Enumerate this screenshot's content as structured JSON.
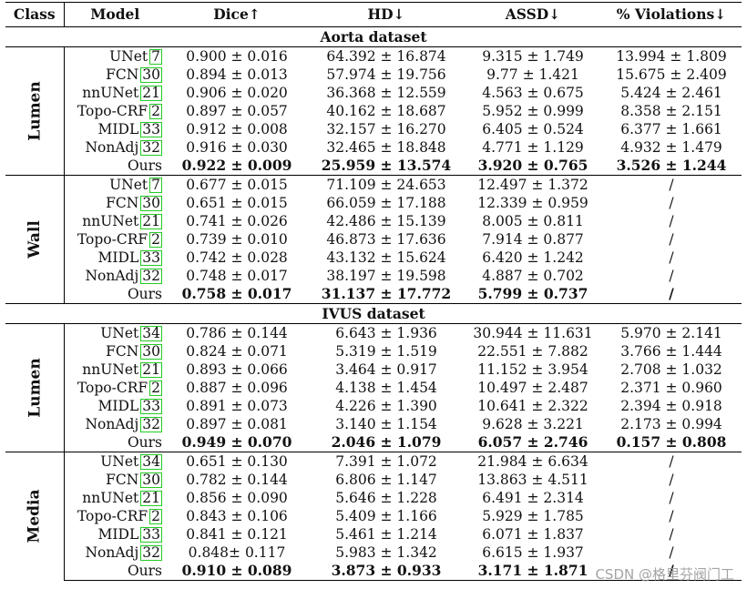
{
  "headers": [
    "Class",
    "Model",
    "Dice↑",
    "HD↓",
    "ASSD↓",
    "% Violations↓"
  ],
  "datasets": [
    {
      "title": "Aorta dataset",
      "groups": [
        {
          "label": "Lumen",
          "rows": [
            {
              "model": "UNet",
              "ref": "7",
              "dice": "0.900 ± 0.016",
              "hd": "64.392 ± 16.874",
              "assd": "9.315 ± 1.749",
              "viol": "13.994 ± 1.809"
            },
            {
              "model": "FCN",
              "ref": "30",
              "dice": "0.894 ± 0.013",
              "hd": "57.974 ± 19.756",
              "assd": "9.77 ± 1.421",
              "viol": "15.675 ± 2.409"
            },
            {
              "model": "nnUNet",
              "ref": "21",
              "dice": "0.906 ± 0.020",
              "hd": "36.368 ± 12.559",
              "assd": "4.563 ± 0.675",
              "viol": "5.424 ± 2.461"
            },
            {
              "model": "Topo-CRF",
              "ref": "2",
              "dice": "0.897 ± 0.057",
              "hd": "40.162 ± 18.687",
              "assd": "5.952 ± 0.999",
              "viol": "8.358 ± 2.151"
            },
            {
              "model": "MIDL",
              "ref": "33",
              "dice": "0.912 ± 0.008",
              "hd": "32.157 ± 16.270",
              "assd": "6.405 ± 0.524",
              "viol": "6.377 ± 1.661"
            },
            {
              "model": "NonAdj",
              "ref": "32",
              "dice": "0.916 ± 0.030",
              "hd": "32.465 ± 18.848",
              "assd": "4.771 ± 1.129",
              "viol": "4.932 ± 1.479"
            },
            {
              "model": "Ours",
              "ref": "",
              "dice": "0.922 ± 0.009",
              "hd": "25.959 ± 13.574",
              "assd": "3.920 ± 0.765",
              "viol": "3.526 ± 1.244",
              "best": true
            }
          ]
        },
        {
          "label": "Wall",
          "rows": [
            {
              "model": "UNet",
              "ref": "7",
              "dice": "0.677 ± 0.015",
              "hd": "71.109 ± 24.653",
              "assd": "12.497 ± 1.372",
              "viol": "/"
            },
            {
              "model": "FCN",
              "ref": "30",
              "dice": "0.651 ± 0.015",
              "hd": "66.059 ± 17.188",
              "assd": "12.339 ± 0.959",
              "viol": "/"
            },
            {
              "model": "nnUNet",
              "ref": "21",
              "dice": "0.741 ± 0.026",
              "hd": "42.486 ± 15.139",
              "assd": "8.005 ± 0.811",
              "viol": "/"
            },
            {
              "model": "Topo-CRF",
              "ref": "2",
              "dice": "0.739 ± 0.010",
              "hd": "46.873 ± 17.636",
              "assd": "7.914 ± 0.877",
              "viol": "/"
            },
            {
              "model": "MIDL",
              "ref": "33",
              "dice": "0.742 ± 0.028",
              "hd": "43.132 ± 15.624",
              "assd": "6.420 ± 1.242",
              "viol": "/"
            },
            {
              "model": "NonAdj",
              "ref": "32",
              "dice": "0.748 ± 0.017",
              "hd": "38.197 ± 19.598",
              "assd": "4.887 ± 0.702",
              "viol": "/"
            },
            {
              "model": "Ours",
              "ref": "",
              "dice": "0.758 ± 0.017",
              "hd": "31.137 ± 17.772",
              "assd": "5.799 ± 0.737",
              "viol": "/",
              "best": true
            }
          ]
        }
      ]
    },
    {
      "title": "IVUS dataset",
      "groups": [
        {
          "label": "Lumen",
          "rows": [
            {
              "model": "UNet",
              "ref": "34",
              "dice": "0.786 ± 0.144",
              "hd": "6.643 ± 1.936",
              "assd": "30.944 ± 11.631",
              "viol": "5.970 ± 2.141"
            },
            {
              "model": "FCN",
              "ref": "30",
              "dice": "0.824 ± 0.071",
              "hd": "5.319 ± 1.519",
              "assd": "22.551 ± 7.882",
              "viol": "3.766 ± 1.444"
            },
            {
              "model": "nnUNet",
              "ref": "21",
              "dice": "0.893 ± 0.066",
              "hd": "3.464 ± 0.917",
              "assd": "11.152 ± 3.954",
              "viol": "2.708 ± 1.032"
            },
            {
              "model": "Topo-CRF",
              "ref": "2",
              "dice": "0.887 ± 0.096",
              "hd": "4.138 ± 1.454",
              "assd": "10.497 ± 2.487",
              "viol": "2.371 ± 0.960"
            },
            {
              "model": "MIDL",
              "ref": "33",
              "dice": "0.891 ± 0.073",
              "hd": "4.226 ± 1.390",
              "assd": "10.641 ± 2.322",
              "viol": "2.394 ± 0.918"
            },
            {
              "model": "NonAdj",
              "ref": "32",
              "dice": "0.897 ± 0.081",
              "hd": "3.140 ± 1.154",
              "assd": "9.628 ± 3.221",
              "viol": "2.173 ± 0.994"
            },
            {
              "model": "Ours",
              "ref": "",
              "dice": "0.949 ± 0.070",
              "hd": "2.046 ± 1.079",
              "assd": "6.057 ± 2.746",
              "viol": "0.157 ± 0.808",
              "best": true
            }
          ]
        },
        {
          "label": "Media",
          "rows": [
            {
              "model": "UNet",
              "ref": "34",
              "dice": "0.651 ± 0.130",
              "hd": "7.391 ± 1.072",
              "assd": "21.984 ± 6.634",
              "viol": "/"
            },
            {
              "model": "FCN",
              "ref": "30",
              "dice": "0.782 ± 0.144",
              "hd": "6.806 ± 1.147",
              "assd": "13.863 ± 4.511",
              "viol": "/"
            },
            {
              "model": "nnUNet",
              "ref": "21",
              "dice": "0.856 ± 0.090",
              "hd": "5.646 ± 1.228",
              "assd": "6.491 ± 2.314",
              "viol": "/"
            },
            {
              "model": "Topo-CRF",
              "ref": "2",
              "dice": "0.843 ± 0.106",
              "hd": "5.409 ± 1.166",
              "assd": "5.929 ± 1.785",
              "viol": "/"
            },
            {
              "model": "MIDL",
              "ref": "33",
              "dice": "0.841 ± 0.121",
              "hd": "5.461 ± 1.214",
              "assd": "6.071 ± 1.837",
              "viol": "/"
            },
            {
              "model": "NonAdj",
              "ref": "32",
              "dice": "0.848± 0.117",
              "hd": "5.983 ± 1.342",
              "assd": "6.615 ± 1.937",
              "viol": "/"
            },
            {
              "model": "Ours",
              "ref": "",
              "dice": "0.910 ± 0.089",
              "hd": "3.873 ± 0.933",
              "assd": "3.171 ± 1.871",
              "viol": "/",
              "best": true
            }
          ]
        }
      ]
    }
  ],
  "watermark": "CSDN @格里芬阀门工"
}
